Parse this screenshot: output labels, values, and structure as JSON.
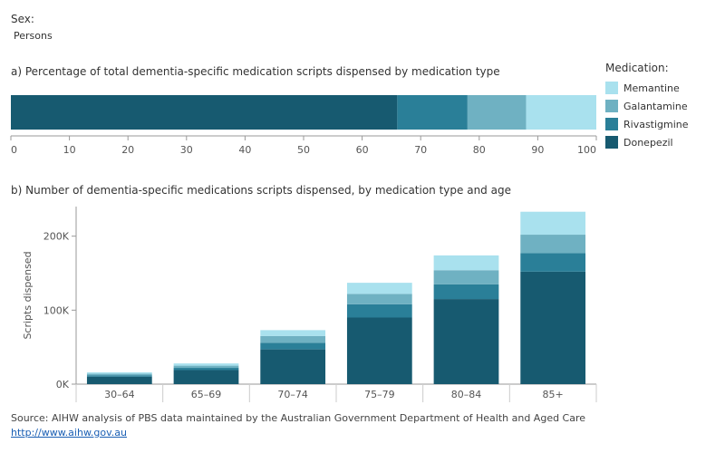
{
  "filter": {
    "label": "Sex:",
    "value": "Persons"
  },
  "legend": {
    "title": "Medication:",
    "items": [
      {
        "name": "Memantine",
        "color": "#a9e1ee"
      },
      {
        "name": "Galantamine",
        "color": "#6fb1c2"
      },
      {
        "name": "Rivastigmine",
        "color": "#2a7f98"
      },
      {
        "name": "Donepezil",
        "color": "#175a70"
      }
    ]
  },
  "source": {
    "text": "Source: AIHW analysis of PBS data maintained by the Australian Government Department of Health and Aged Care",
    "link": "http://www.aihw.gov.au"
  },
  "chart_data": [
    {
      "id": "a",
      "type": "bar",
      "orientation": "horizontal",
      "stacked": true,
      "title": "a) Percentage of total dementia-specific medication scripts dispensed by medication type",
      "xlim": [
        0,
        100
      ],
      "x_ticks": [
        0,
        10,
        20,
        30,
        40,
        50,
        60,
        70,
        80,
        90,
        100
      ],
      "series": [
        {
          "name": "Donepezil",
          "value": 66
        },
        {
          "name": "Rivastigmine",
          "value": 12
        },
        {
          "name": "Galantamine",
          "value": 10
        },
        {
          "name": "Memantine",
          "value": 12
        }
      ]
    },
    {
      "id": "b",
      "type": "bar",
      "stacked": true,
      "title": "b) Number of dementia-specific medications scripts dispensed, by medication type and age",
      "ylabel": "Scripts dispensed",
      "ylim": [
        0,
        240000
      ],
      "y_ticks": [
        {
          "value": 0,
          "label": "0K"
        },
        {
          "value": 100000,
          "label": "100K"
        },
        {
          "value": 200000,
          "label": "200K"
        }
      ],
      "categories": [
        "30–64",
        "65–69",
        "70–74",
        "75–79",
        "80–84",
        "85+"
      ],
      "series": [
        {
          "name": "Donepezil",
          "values": [
            10000,
            19000,
            47000,
            90000,
            115000,
            152000
          ]
        },
        {
          "name": "Rivastigmine",
          "values": [
            2000,
            3000,
            9000,
            18000,
            20000,
            25000
          ]
        },
        {
          "name": "Galantamine",
          "values": [
            2000,
            3000,
            9000,
            14000,
            19000,
            25000
          ]
        },
        {
          "name": "Memantine",
          "values": [
            2000,
            3000,
            8000,
            15000,
            20000,
            31000
          ]
        }
      ]
    }
  ]
}
